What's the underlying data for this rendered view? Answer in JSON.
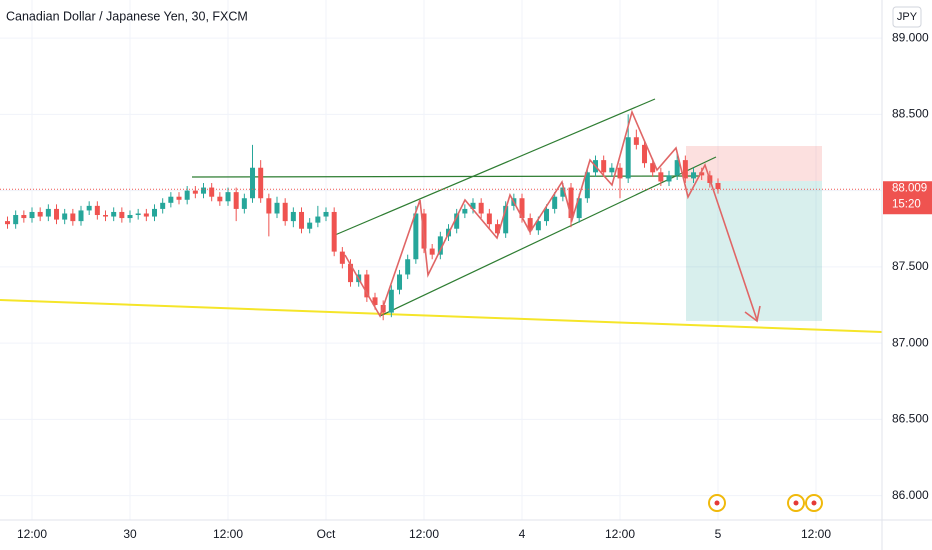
{
  "chart_data": {
    "type": "candlestick",
    "title": "Canadian Dollar / Japanese Yen, 30, FXCM",
    "currency": "JPY",
    "up_color": "#26a69a",
    "down_color": "#ef5350",
    "xlim": [
      -3.92,
      104.08
    ],
    "xticks": [
      {
        "value": 0,
        "label": "12:00"
      },
      {
        "value": 12,
        "label": "30"
      },
      {
        "value": 24,
        "label": "12:00"
      },
      {
        "value": 36,
        "label": "Oct"
      },
      {
        "value": 48,
        "label": "12:00"
      },
      {
        "value": 60,
        "label": "4"
      },
      {
        "value": 72,
        "label": "12:00"
      },
      {
        "value": 84,
        "label": "5"
      },
      {
        "value": 96,
        "label": "12:00"
      }
    ],
    "ylim": [
      85.84,
      89.25
    ],
    "yticks": [
      {
        "value": 86,
        "label": "86.000"
      },
      {
        "value": 86.5,
        "label": "86.500"
      },
      {
        "value": 87,
        "label": "87.000"
      },
      {
        "value": 87.5,
        "label": "87.500"
      },
      {
        "value": 88,
        "label": "88.000"
      },
      {
        "value": 88.5,
        "label": "88.500"
      },
      {
        "value": 89,
        "label": "89.000"
      }
    ],
    "last_price": 88.009,
    "countdown": "15:20",
    "x": [
      -3,
      -2,
      -1,
      0,
      1,
      2,
      3,
      4,
      5,
      6,
      7,
      8,
      9,
      10,
      11,
      12,
      13,
      14,
      15,
      16,
      17,
      18,
      19,
      20,
      21,
      22,
      23,
      24,
      25,
      26,
      27,
      28,
      29,
      30,
      31,
      32,
      33,
      34,
      35,
      36,
      37,
      38,
      39,
      40,
      41,
      42,
      43,
      44,
      45,
      46,
      47,
      48,
      49,
      50,
      51,
      52,
      53,
      54,
      55,
      56,
      57,
      58,
      59,
      60,
      61,
      62,
      63,
      64,
      65,
      66,
      67,
      68,
      69,
      70,
      71,
      72,
      73,
      74,
      75,
      76,
      77,
      78,
      79,
      80,
      81,
      82,
      83,
      84
    ],
    "open": [
      87.8,
      87.78,
      87.84,
      87.82,
      87.86,
      87.83,
      87.88,
      87.81,
      87.85,
      87.8,
      87.87,
      87.9,
      87.84,
      87.83,
      87.86,
      87.82,
      87.84,
      87.85,
      87.83,
      87.88,
      87.92,
      87.96,
      87.94,
      88.0,
      87.98,
      88.02,
      87.96,
      87.93,
      87.99,
      87.88,
      87.95,
      88.15,
      87.95,
      87.85,
      87.92,
      87.8,
      87.86,
      87.75,
      87.79,
      87.83,
      87.86,
      87.6,
      87.52,
      87.4,
      87.45,
      87.3,
      87.25,
      87.2,
      87.35,
      87.45,
      87.55,
      87.85,
      87.62,
      87.58,
      87.7,
      87.75,
      87.85,
      87.88,
      87.92,
      87.85,
      87.78,
      87.72,
      87.9,
      87.95,
      87.82,
      87.74,
      87.8,
      87.88,
      87.96,
      88.02,
      87.82,
      87.95,
      88.12,
      88.2,
      88.12,
      88.15,
      88.08,
      88.35,
      88.3,
      88.18,
      88.12,
      88.06,
      88.1,
      88.2,
      88.08,
      88.12,
      88.1,
      88.05
    ],
    "high": [
      87.83,
      87.87,
      87.87,
      87.89,
      87.89,
      87.91,
      87.91,
      87.88,
      87.88,
      87.9,
      87.93,
      87.93,
      87.87,
      87.89,
      87.89,
      87.87,
      87.88,
      87.88,
      87.91,
      87.95,
      87.99,
      87.99,
      88.03,
      88.03,
      88.05,
      88.05,
      87.99,
      88.02,
      88.02,
      87.98,
      88.3,
      88.2,
      87.98,
      87.96,
      87.95,
      87.89,
      87.89,
      87.82,
      87.9,
      87.89,
      87.89,
      87.63,
      87.55,
      87.48,
      87.48,
      87.33,
      87.28,
      87.38,
      87.48,
      87.58,
      87.9,
      87.88,
      87.65,
      87.73,
      87.78,
      87.88,
      87.91,
      87.95,
      87.95,
      87.88,
      87.81,
      87.93,
      87.98,
      87.98,
      87.85,
      87.83,
      87.91,
      87.99,
      88.05,
      88.05,
      87.98,
      88.15,
      88.23,
      88.23,
      88.18,
      88.18,
      88.5,
      88.4,
      88.33,
      88.21,
      88.15,
      88.13,
      88.25,
      88.23,
      88.15,
      88.15,
      88.13,
      88.08
    ],
    "low": [
      87.75,
      87.75,
      87.79,
      87.79,
      87.8,
      87.8,
      87.78,
      87.78,
      87.77,
      87.77,
      87.84,
      87.81,
      87.8,
      87.8,
      87.79,
      87.79,
      87.81,
      87.8,
      87.8,
      87.85,
      87.89,
      87.91,
      87.91,
      87.95,
      87.95,
      87.93,
      87.9,
      87.9,
      87.8,
      87.85,
      87.92,
      87.92,
      87.7,
      87.82,
      87.77,
      87.76,
      87.72,
      87.72,
      87.76,
      87.8,
      87.57,
      87.49,
      87.37,
      87.37,
      87.27,
      87.22,
      87.15,
      87.17,
      87.32,
      87.42,
      87.52,
      87.59,
      87.55,
      87.55,
      87.67,
      87.72,
      87.82,
      87.85,
      87.82,
      87.75,
      87.69,
      87.69,
      87.87,
      87.79,
      87.71,
      87.71,
      87.77,
      87.85,
      87.93,
      87.76,
      87.79,
      87.92,
      88.09,
      88.09,
      88.09,
      87.95,
      88.05,
      88.27,
      88.15,
      88.09,
      88.03,
      88.03,
      88.07,
      88.05,
      88.05,
      88.07,
      88.02,
      87.98
    ],
    "close": [
      87.78,
      87.84,
      87.82,
      87.86,
      87.83,
      87.88,
      87.81,
      87.85,
      87.8,
      87.87,
      87.9,
      87.84,
      87.83,
      87.86,
      87.82,
      87.84,
      87.85,
      87.83,
      87.88,
      87.92,
      87.96,
      87.94,
      88.0,
      87.98,
      88.02,
      87.96,
      87.93,
      87.99,
      87.88,
      87.95,
      88.15,
      87.95,
      87.85,
      87.92,
      87.8,
      87.86,
      87.75,
      87.79,
      87.83,
      87.86,
      87.6,
      87.52,
      87.4,
      87.45,
      87.3,
      87.25,
      87.2,
      87.35,
      87.45,
      87.55,
      87.85,
      87.62,
      87.58,
      87.7,
      87.75,
      87.85,
      87.88,
      87.92,
      87.85,
      87.78,
      87.72,
      87.9,
      87.95,
      87.82,
      87.74,
      87.8,
      87.88,
      87.96,
      88.02,
      87.82,
      87.95,
      88.12,
      88.2,
      88.12,
      88.15,
      88.08,
      88.35,
      88.3,
      88.18,
      88.12,
      88.06,
      88.1,
      88.2,
      88.08,
      88.12,
      88.1,
      88.05,
      88.01
    ]
  }
}
